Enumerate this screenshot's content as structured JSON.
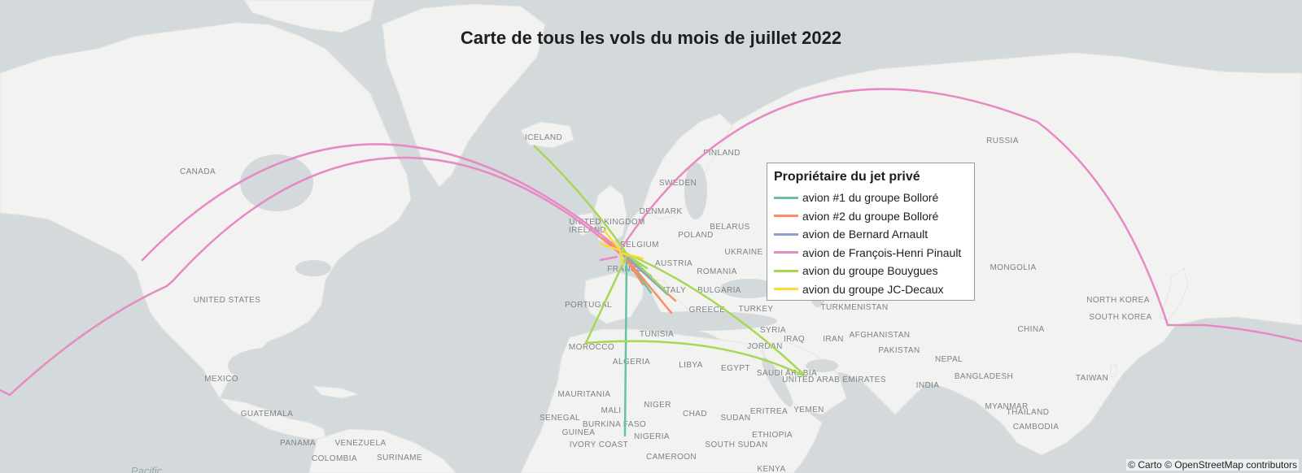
{
  "title": "Carte de tous les vols du mois de juillet 2022",
  "legend": {
    "title": "Propriétaire du jet privé",
    "items": [
      {
        "label": "avion #1 du groupe Bolloré",
        "color": "#66c2a5"
      },
      {
        "label": "avion #2 du groupe Bolloré",
        "color": "#fc8d62"
      },
      {
        "label": "avion de Bernard Arnault",
        "color": "#8da0cb"
      },
      {
        "label": "avion de François-Henri Pinault",
        "color": "#e78ac3"
      },
      {
        "label": "avion du groupe Bouygues",
        "color": "#a6d854"
      },
      {
        "label": "avion du groupe JC-Decaux",
        "color": "#ffd92f"
      }
    ]
  },
  "attribution": "© Carto © OpenStreetMap contributors",
  "map": {
    "land_color": "#f2f2f0",
    "water_color": "#d4dadc",
    "country_labels": [
      "ICELAND",
      "CANADA",
      "UNITED STATES",
      "MEXICO",
      "GUATEMALA",
      "PANAMA",
      "VENEZUELA",
      "COLOMBIA",
      "SURINAME",
      "IRELAND",
      "UNITED KINGDOM",
      "BELGIUM",
      "FRANCE",
      "PORTUGAL",
      "MOROCCO",
      "ALGERIA",
      "TUNISIA",
      "LIBYA",
      "EGYPT",
      "MAURITANIA",
      "MALI",
      "NIGER",
      "CHAD",
      "SUDAN",
      "SENEGAL",
      "GUINEA",
      "BURKINA FASO",
      "IVORY COAST",
      "NIGERIA",
      "CAMEROON",
      "ETHIOPIA",
      "ERITREA",
      "SOUTH SUDAN",
      "KENYA",
      "YEMEN",
      "SAUDI ARABIA",
      "UNITED ARAB EMIRATES",
      "JORDAN",
      "SYRIA",
      "IRAQ",
      "IRAN",
      "AFGHANISTAN",
      "PAKISTAN",
      "INDIA",
      "NEPAL",
      "BANGLADESH",
      "MYANMAR",
      "THAILAND",
      "CAMBODIA",
      "CHINA",
      "TAIWAN",
      "MONGOLIA",
      "RUSSIA",
      "NORTH KOREA",
      "SOUTH KOREA",
      "TURKMENISTAN",
      "TURKEY",
      "GREECE",
      "BULGARIA",
      "ROMANIA",
      "UKRAINE",
      "BELARUS",
      "POLAND",
      "AUSTRIA",
      "ITALY",
      "DENMARK",
      "SWEDEN",
      "FINLAND"
    ],
    "ocean_labels": [
      "Pacific"
    ]
  }
}
